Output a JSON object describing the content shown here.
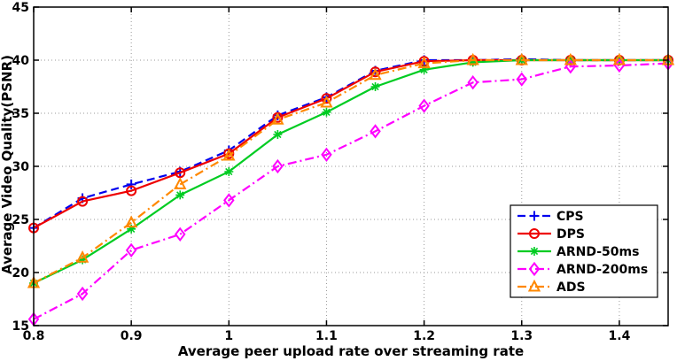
{
  "figure": {
    "xlabel": "Average peer upload rate over streaming rate",
    "ylabel": "Average Video Quality(PSNR)"
  },
  "chart_data": {
    "type": "line",
    "title": "",
    "xlabel": "Average peer upload rate over streaming rate",
    "ylabel": "Average Video Quality(PSNR)",
    "xlim": [
      0.8,
      1.45
    ],
    "ylim": [
      15,
      45
    ],
    "grid": true,
    "legend_position": "bottom-right",
    "xticks": {
      "values": [
        0.8,
        0.9,
        1.0,
        1.1,
        1.2,
        1.3,
        1.4
      ],
      "labels": [
        "0.8",
        "0.9",
        "1",
        "1.1",
        "1.2",
        "1.3",
        "1.4"
      ]
    },
    "yticks": {
      "values": [
        15,
        20,
        25,
        30,
        35,
        40,
        45
      ],
      "labels": [
        "15",
        "20",
        "25",
        "30",
        "35",
        "40",
        "45"
      ]
    },
    "x": [
      0.8,
      0.85,
      0.9,
      0.95,
      1.0,
      1.05,
      1.1,
      1.15,
      1.2,
      1.25,
      1.3,
      1.35,
      1.4,
      1.45
    ],
    "series": [
      {
        "name": "CPS",
        "color": "#0000ee",
        "line": "dashed",
        "marker": "plus",
        "values": [
          24.2,
          27.0,
          28.3,
          29.5,
          31.5,
          34.8,
          36.5,
          39.0,
          40.0,
          40.0,
          40.1,
          40.0,
          40.0,
          40.0
        ]
      },
      {
        "name": "DPS",
        "color": "#ee0000",
        "line": "solid",
        "marker": "circle",
        "values": [
          24.2,
          26.7,
          27.7,
          29.4,
          31.2,
          34.6,
          36.4,
          38.9,
          39.9,
          40.0,
          40.0,
          40.0,
          40.0,
          40.0
        ]
      },
      {
        "name": "ARND-50ms",
        "color": "#00cc22",
        "line": "solid",
        "marker": "asterisk",
        "values": [
          19.0,
          21.2,
          24.1,
          27.3,
          29.5,
          33.0,
          35.1,
          37.5,
          39.1,
          39.8,
          40.0,
          40.0,
          40.0,
          40.0
        ]
      },
      {
        "name": "ARND-200ms",
        "color": "#ff00ff",
        "line": "dashdot",
        "marker": "diamond",
        "values": [
          15.6,
          18.0,
          22.1,
          23.6,
          26.8,
          30.0,
          31.1,
          33.3,
          35.7,
          37.9,
          38.2,
          39.4,
          39.5,
          39.7
        ]
      },
      {
        "name": "ADS",
        "color": "#ff8800",
        "line": "dashdot",
        "marker": "triangle",
        "values": [
          19.0,
          21.4,
          24.7,
          28.3,
          31.0,
          34.4,
          36.0,
          38.6,
          39.7,
          40.0,
          40.0,
          40.0,
          40.0,
          40.0
        ]
      }
    ]
  }
}
